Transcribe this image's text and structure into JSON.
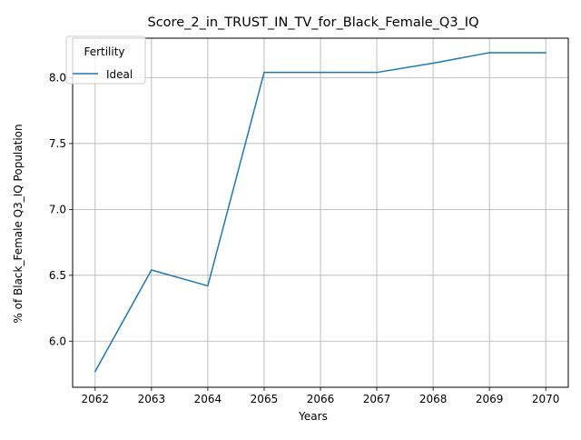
{
  "chart_data": {
    "type": "line",
    "title": "Score_2_in_TRUST_IN_TV_for_Black_Female_Q3_IQ",
    "xlabel": "Years",
    "ylabel": "% of Black_Female Q3_IQ Population",
    "x": [
      2062,
      2063,
      2064,
      2065,
      2066,
      2067,
      2068,
      2069,
      2070
    ],
    "xlim": [
      2061.6,
      2070.4
    ],
    "ylim": [
      5.65,
      8.3
    ],
    "xticks": [
      "2062",
      "2063",
      "2064",
      "2065",
      "2066",
      "2067",
      "2068",
      "2069",
      "2070"
    ],
    "yticks": [
      6.0,
      6.5,
      7.0,
      7.5,
      8.0
    ],
    "ytick_labels": [
      "6.0",
      "6.5",
      "7.0",
      "7.5",
      "8.0"
    ],
    "grid": true,
    "legend": {
      "title": "Fertility",
      "position": "top-left"
    },
    "series": [
      {
        "name": "Ideal",
        "color": "#1f77b4",
        "values": [
          5.77,
          6.54,
          6.42,
          8.04,
          8.04,
          8.04,
          8.11,
          8.19,
          8.19
        ]
      }
    ]
  }
}
